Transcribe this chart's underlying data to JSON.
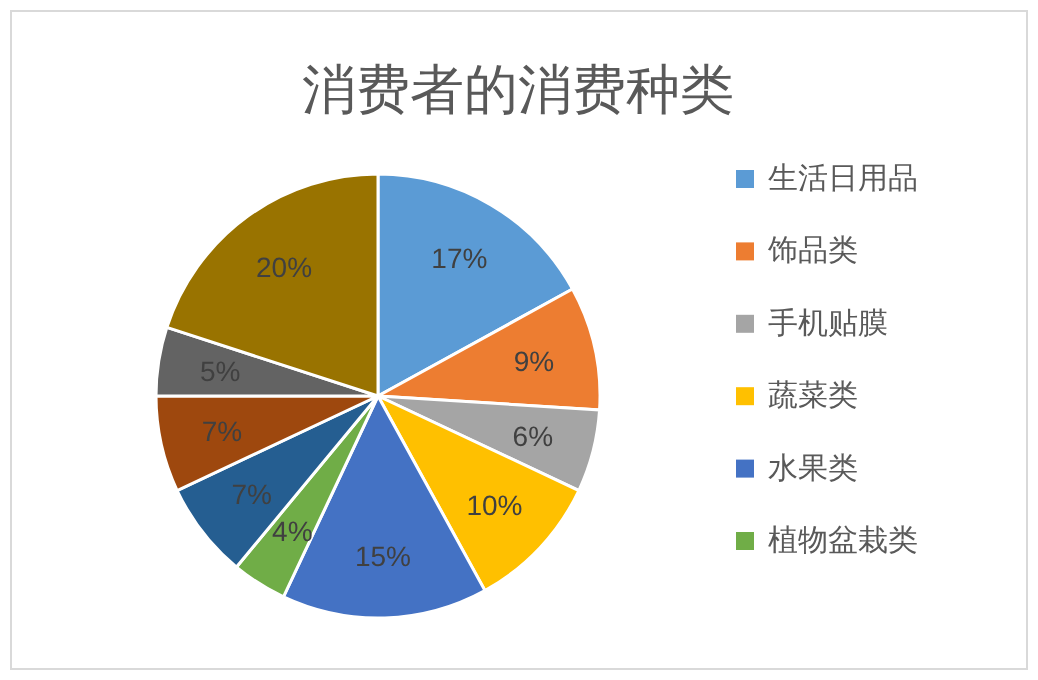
{
  "chart_data": {
    "type": "pie",
    "title": "消费者的消费种类",
    "categories": [
      "生活日用品",
      "饰品类",
      "手机贴膜",
      "蔬菜类",
      "水果类",
      "植物盆栽类",
      null,
      null,
      null,
      null
    ],
    "values": [
      17,
      9,
      6,
      10,
      15,
      4,
      7,
      7,
      5,
      20
    ],
    "value_labels": [
      "17%",
      "9%",
      "6%",
      "10%",
      "15%",
      "4%",
      "7%",
      "7%",
      "5%",
      "20%"
    ],
    "colors": [
      "#5b9bd5",
      "#ed7d31",
      "#a5a5a5",
      "#ffc000",
      "#4472c4",
      "#70ad47",
      "#255e91",
      "#9e480e",
      "#636363",
      "#997300"
    ],
    "legend": "right"
  }
}
